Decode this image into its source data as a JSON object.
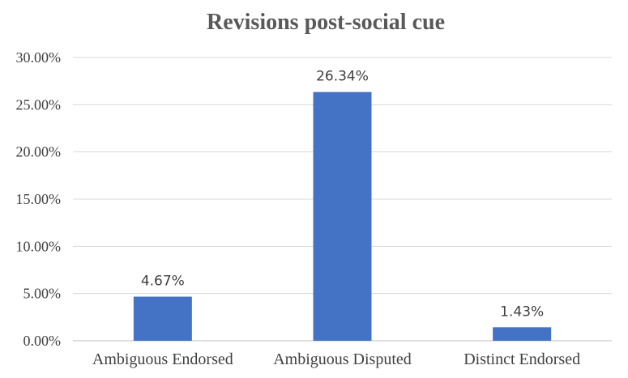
{
  "chart_data": {
    "type": "bar",
    "title": "Revisions post-social cue",
    "categories": [
      "Ambiguous Endorsed",
      "Ambiguous Disputed",
      "Distinct Endorsed"
    ],
    "values": [
      4.67,
      26.34,
      1.43
    ],
    "data_labels": [
      "4.67%",
      "26.34%",
      "1.43%"
    ],
    "y_ticks": [
      0,
      5,
      10,
      15,
      20,
      25,
      30
    ],
    "y_tick_labels": [
      "0.00%",
      "5.00%",
      "10.00%",
      "15.00%",
      "20.00%",
      "25.00%",
      "30.00%"
    ],
    "ylim": [
      0,
      30
    ],
    "xlabel": "",
    "ylabel": "",
    "grid": true,
    "legend": "none",
    "bar_color": "#4472C4"
  }
}
